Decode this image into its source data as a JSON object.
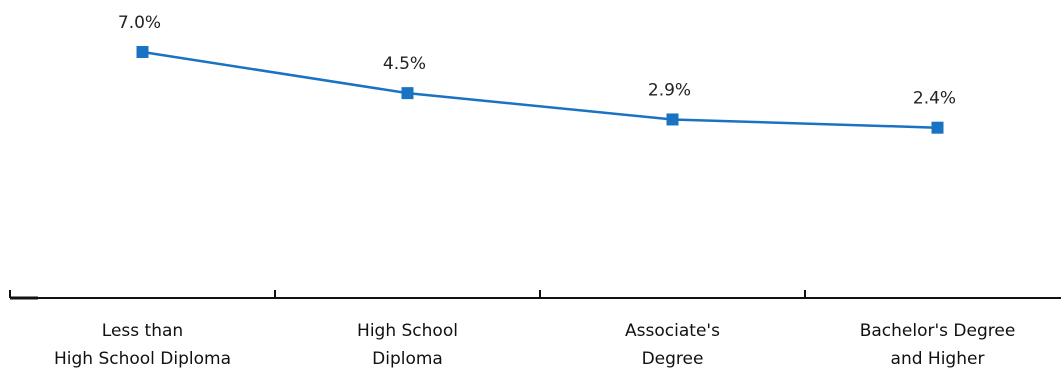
{
  "chart_data": {
    "type": "line",
    "title": "",
    "xlabel": "",
    "ylabel": "",
    "categories": [
      [
        "Less than",
        "High School Diploma"
      ],
      [
        "High School",
        "Diploma"
      ],
      [
        "Associate's",
        "Degree"
      ],
      [
        "Bachelor's Degree",
        "and Higher"
      ]
    ],
    "series": [
      {
        "values": [
          7.0,
          4.5,
          2.9,
          2.4
        ],
        "data_labels": [
          "7.0%",
          "4.5%",
          "2.9%",
          "2.4%"
        ],
        "color": "#1a73c2"
      }
    ],
    "ylim": [
      0,
      7.0
    ],
    "grid": false,
    "legend": "none"
  }
}
